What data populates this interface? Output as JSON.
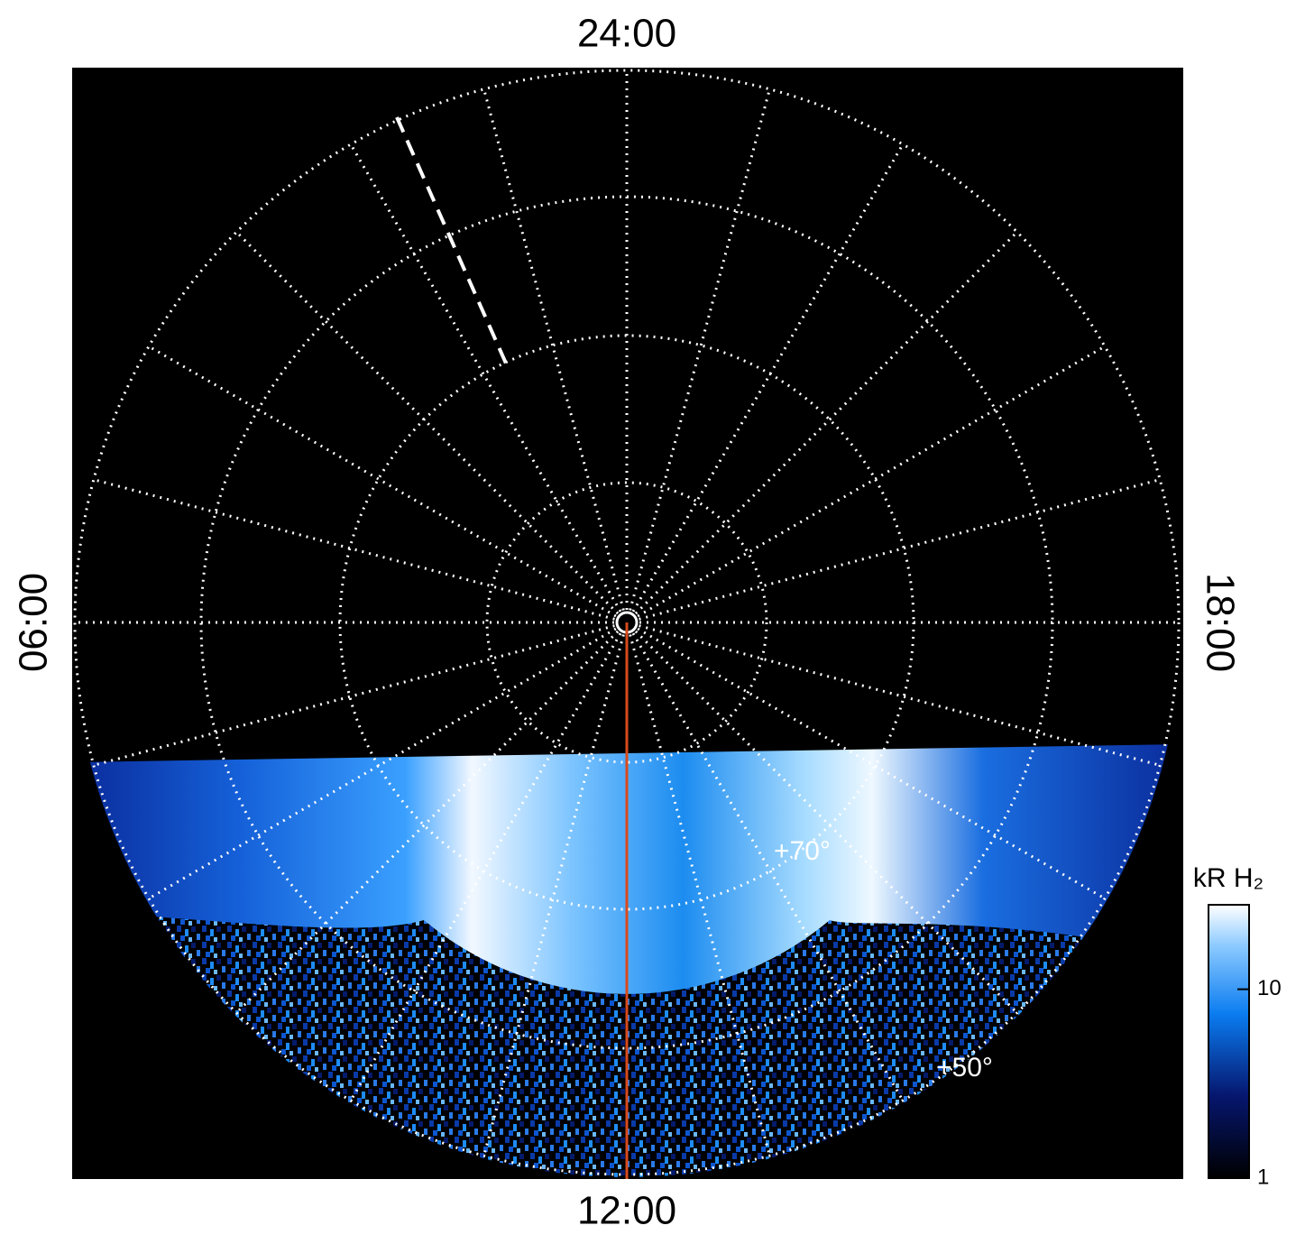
{
  "chart_data": {
    "type": "polar",
    "local_time_labels": {
      "top": "24:00",
      "left": "06:00",
      "right": "18:00",
      "bottom": "12:00"
    },
    "latitude_labels": [
      "+70°",
      "+50°"
    ],
    "colorbar": {
      "title": "kR H₂",
      "log": true,
      "lim": [
        1,
        28
      ],
      "ticks": [
        1,
        10
      ]
    }
  }
}
